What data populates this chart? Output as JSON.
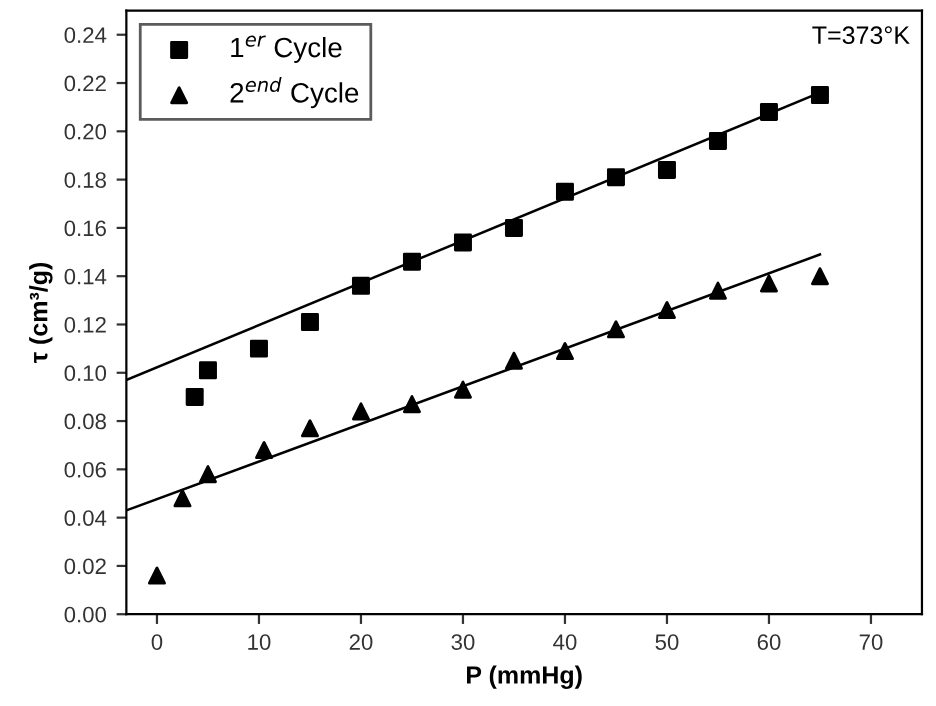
{
  "chart_data": {
    "type": "scatter",
    "xlabel": "P (mmHg)",
    "ylabel": "τ (cm³/g)",
    "annotations": [
      "T=373°K"
    ],
    "xlim": [
      -3,
      75
    ],
    "xticks": [
      0,
      10,
      20,
      30,
      40,
      50,
      60,
      70
    ],
    "ylim": [
      0,
      0.25
    ],
    "yticks": [
      {
        "value": 0,
        "label": "0.00"
      },
      0.02,
      0.04,
      0.06,
      0.08,
      {
        "value": 0.1,
        "label": "0.10"
      },
      0.12,
      0.14,
      0.16,
      0.18,
      {
        "value": 0.2,
        "label": "0.20"
      },
      0.22,
      0.24
    ],
    "grid": false,
    "legend": "top left",
    "series": [
      {
        "name": "1$^{er}$ Cycle",
        "color": "#000000",
        "marker": "square",
        "x": [
          3.7,
          5,
          10,
          15,
          20,
          25,
          30,
          35,
          40,
          45,
          50,
          55,
          60,
          65
        ],
        "values": [
          0.09,
          0.101,
          0.11,
          0.121,
          0.136,
          0.146,
          0.154,
          0.16,
          0.175,
          0.181,
          0.184,
          0.196,
          0.208,
          0.215
        ]
      },
      {
        "name": "2$^{end}$ Cycle",
        "color": "#000000",
        "marker": "triangle",
        "x": [
          0,
          2.5,
          5,
          10.5,
          15,
          20,
          25,
          30,
          35,
          40,
          45,
          50,
          55,
          60,
          65
        ],
        "values": [
          0.016,
          0.048,
          0.058,
          0.068,
          0.077,
          0.084,
          0.087,
          0.093,
          0.105,
          0.109,
          0.118,
          0.126,
          0.134,
          0.137,
          0.14
        ]
      },
      {
        "type": "line",
        "color": "#000000",
        "x": [
          -3,
          65
        ],
        "values": [
          0.097,
          0.216
        ]
      },
      {
        "type": "line",
        "color": "#000000",
        "x": [
          -3,
          65
        ],
        "values": [
          0.043,
          0.149
        ]
      }
    ]
  }
}
